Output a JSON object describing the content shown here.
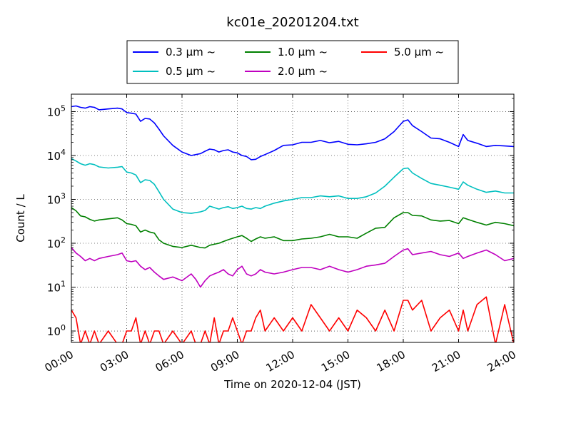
{
  "chart_data": {
    "type": "line",
    "title": "kc01e_20201204.txt",
    "xlabel": "Time on 2020-12-04 (JST)",
    "ylabel": "Count / L",
    "xlim": [
      0,
      24
    ],
    "ylim": [
      0.55,
      250000
    ],
    "yscale": "log",
    "grid": true,
    "legend_position": "top-center",
    "x_ticks": [
      0,
      3,
      6,
      9,
      12,
      15,
      18,
      21,
      24
    ],
    "x_tick_labels": [
      "00:00",
      "03:00",
      "06:00",
      "09:00",
      "12:00",
      "15:00",
      "18:00",
      "21:00",
      "24:00"
    ],
    "y_ticks": [
      1,
      10,
      100,
      1000,
      10000,
      100000
    ],
    "y_tick_labels": [
      {
        "base": "10",
        "exp": "0"
      },
      {
        "base": "10",
        "exp": "1"
      },
      {
        "base": "10",
        "exp": "2"
      },
      {
        "base": "10",
        "exp": "3"
      },
      {
        "base": "10",
        "exp": "4"
      },
      {
        "base": "10",
        "exp": "5"
      }
    ],
    "series": [
      {
        "name": "0.3 μm ~",
        "color": "#0000ff",
        "x": [
          0,
          0.25,
          0.5,
          0.75,
          1,
          1.25,
          1.5,
          2,
          2.5,
          2.75,
          3,
          3.25,
          3.5,
          3.75,
          4,
          4.25,
          4.5,
          4.75,
          5,
          5.5,
          6,
          6.5,
          6.75,
          7,
          7.25,
          7.5,
          7.75,
          8,
          8.25,
          8.5,
          8.75,
          9,
          9.25,
          9.5,
          9.75,
          10,
          10.25,
          10.5,
          11,
          11.5,
          12,
          12.5,
          13,
          13.5,
          14,
          14.5,
          15,
          15.5,
          16,
          16.5,
          17,
          17.5,
          18,
          18.25,
          18.5,
          19,
          19.5,
          20,
          20.5,
          21,
          21.25,
          21.5,
          22,
          22.5,
          23,
          23.5,
          24
        ],
        "y": [
          130000,
          135000,
          125000,
          120000,
          130000,
          125000,
          110000,
          115000,
          120000,
          115000,
          95000,
          92000,
          88000,
          60000,
          70000,
          68000,
          55000,
          40000,
          28000,
          17000,
          12000,
          10000,
          10500,
          11000,
          12500,
          14000,
          13500,
          12000,
          13000,
          13500,
          12000,
          11500,
          10000,
          9500,
          8000,
          8200,
          9500,
          10500,
          13000,
          17000,
          17500,
          20000,
          20000,
          22000,
          19500,
          21000,
          18000,
          17500,
          18500,
          20000,
          24000,
          35000,
          60000,
          65000,
          48000,
          35000,
          25000,
          24000,
          20000,
          16000,
          30000,
          22000,
          19000,
          16000,
          17000,
          16500,
          16000
        ]
      },
      {
        "name": "0.5 μm ~",
        "color": "#00bfbf",
        "x": [
          0,
          0.25,
          0.5,
          0.75,
          1,
          1.25,
          1.5,
          2,
          2.5,
          2.75,
          3,
          3.25,
          3.5,
          3.75,
          4,
          4.25,
          4.5,
          4.75,
          5,
          5.5,
          6,
          6.5,
          6.75,
          7,
          7.25,
          7.5,
          7.75,
          8,
          8.25,
          8.5,
          8.75,
          9,
          9.25,
          9.5,
          9.75,
          10,
          10.25,
          10.5,
          11,
          11.5,
          12,
          12.5,
          13,
          13.5,
          14,
          14.5,
          15,
          15.5,
          16,
          16.5,
          17,
          17.5,
          18,
          18.25,
          18.5,
          19,
          19.5,
          20,
          20.5,
          21,
          21.25,
          21.5,
          22,
          22.5,
          23,
          23.5,
          24
        ],
        "y": [
          8500,
          7500,
          6500,
          6000,
          6500,
          6200,
          5500,
          5200,
          5400,
          5600,
          4200,
          4000,
          3600,
          2400,
          2800,
          2700,
          2200,
          1500,
          1000,
          600,
          500,
          480,
          500,
          520,
          560,
          700,
          650,
          600,
          650,
          680,
          620,
          650,
          700,
          620,
          600,
          650,
          620,
          700,
          820,
          920,
          1000,
          1100,
          1100,
          1200,
          1150,
          1200,
          1050,
          1050,
          1150,
          1400,
          2000,
          3200,
          5000,
          5200,
          4000,
          3000,
          2300,
          2100,
          1900,
          1700,
          2500,
          2100,
          1700,
          1450,
          1550,
          1400,
          1400
        ]
      },
      {
        "name": "1.0 μm ~",
        "color": "#008000",
        "x": [
          0,
          0.25,
          0.5,
          0.75,
          1,
          1.25,
          1.5,
          2,
          2.5,
          2.75,
          3,
          3.25,
          3.5,
          3.75,
          4,
          4.25,
          4.5,
          4.75,
          5,
          5.5,
          6,
          6.5,
          6.75,
          7,
          7.25,
          7.5,
          7.75,
          8,
          8.25,
          8.5,
          8.75,
          9,
          9.25,
          9.5,
          9.75,
          10,
          10.25,
          10.5,
          11,
          11.5,
          12,
          12.5,
          13,
          13.5,
          14,
          14.5,
          15,
          15.5,
          16,
          16.5,
          17,
          17.5,
          18,
          18.25,
          18.5,
          19,
          19.5,
          20,
          20.5,
          21,
          21.25,
          21.5,
          22,
          22.5,
          23,
          23.5,
          24
        ],
        "y": [
          650,
          550,
          420,
          400,
          350,
          320,
          340,
          360,
          380,
          340,
          280,
          270,
          250,
          180,
          200,
          180,
          170,
          120,
          100,
          85,
          80,
          90,
          85,
          80,
          78,
          90,
          95,
          100,
          110,
          120,
          130,
          140,
          150,
          130,
          110,
          125,
          140,
          130,
          140,
          115,
          115,
          125,
          130,
          140,
          160,
          140,
          140,
          130,
          170,
          220,
          230,
          380,
          500,
          500,
          430,
          420,
          340,
          320,
          330,
          280,
          380,
          350,
          300,
          260,
          300,
          280,
          250
        ]
      },
      {
        "name": "2.0 μm ~",
        "color": "#bf00bf",
        "x": [
          0,
          0.25,
          0.5,
          0.75,
          1,
          1.25,
          1.5,
          2,
          2.5,
          2.75,
          3,
          3.25,
          3.5,
          3.75,
          4,
          4.25,
          4.5,
          4.75,
          5,
          5.5,
          6,
          6.5,
          6.75,
          7,
          7.25,
          7.5,
          7.75,
          8,
          8.25,
          8.5,
          8.75,
          9,
          9.25,
          9.5,
          9.75,
          10,
          10.25,
          10.5,
          11,
          11.5,
          12,
          12.5,
          13,
          13.5,
          14,
          14.5,
          15,
          15.5,
          16,
          16.5,
          17,
          17.5,
          18,
          18.25,
          18.5,
          19,
          19.5,
          20,
          20.5,
          21,
          21.25,
          21.5,
          22,
          22.5,
          23,
          23.5,
          24
        ],
        "y": [
          80,
          60,
          50,
          40,
          45,
          40,
          45,
          50,
          55,
          60,
          40,
          38,
          40,
          30,
          25,
          28,
          22,
          18,
          15,
          17,
          14,
          20,
          15,
          10,
          14,
          18,
          20,
          22,
          25,
          20,
          18,
          25,
          30,
          20,
          18,
          20,
          25,
          22,
          20,
          22,
          25,
          28,
          28,
          25,
          30,
          25,
          22,
          25,
          30,
          32,
          35,
          50,
          70,
          75,
          55,
          60,
          65,
          55,
          50,
          60,
          45,
          50,
          60,
          70,
          55,
          40,
          45
        ]
      },
      {
        "name": "5.0 μm ~",
        "color": "#ff0000",
        "x": [
          0,
          0.25,
          0.5,
          0.75,
          1,
          1.25,
          1.5,
          2,
          2.5,
          2.75,
          3,
          3.25,
          3.5,
          3.75,
          4,
          4.25,
          4.5,
          4.75,
          5,
          5.5,
          6,
          6.5,
          6.75,
          7,
          7.25,
          7.5,
          7.75,
          8,
          8.25,
          8.5,
          8.75,
          9,
          9.25,
          9.5,
          9.75,
          10,
          10.25,
          10.5,
          11,
          11.5,
          12,
          12.5,
          13,
          13.5,
          14,
          14.5,
          15,
          15.5,
          16,
          16.5,
          17,
          17.5,
          18,
          18.25,
          18.5,
          19,
          19.5,
          20,
          20.5,
          21,
          21.25,
          21.5,
          22,
          22.5,
          23,
          23.5,
          24
        ],
        "y": [
          3,
          2,
          0.5,
          1,
          0.5,
          1,
          0.5,
          1,
          0.5,
          0.5,
          1,
          1,
          2,
          0.5,
          1,
          0.5,
          1,
          1,
          0.5,
          1,
          0.5,
          1,
          0.5,
          0.5,
          1,
          0.5,
          2,
          0.5,
          1,
          1,
          2,
          1,
          0.5,
          1,
          1,
          2,
          3,
          1,
          2,
          1,
          2,
          1,
          4,
          2,
          1,
          2,
          1,
          3,
          2,
          1,
          3,
          1,
          5,
          5,
          3,
          5,
          1,
          2,
          3,
          1,
          3,
          1,
          4,
          6,
          0.5,
          4,
          0.5
        ]
      }
    ]
  }
}
